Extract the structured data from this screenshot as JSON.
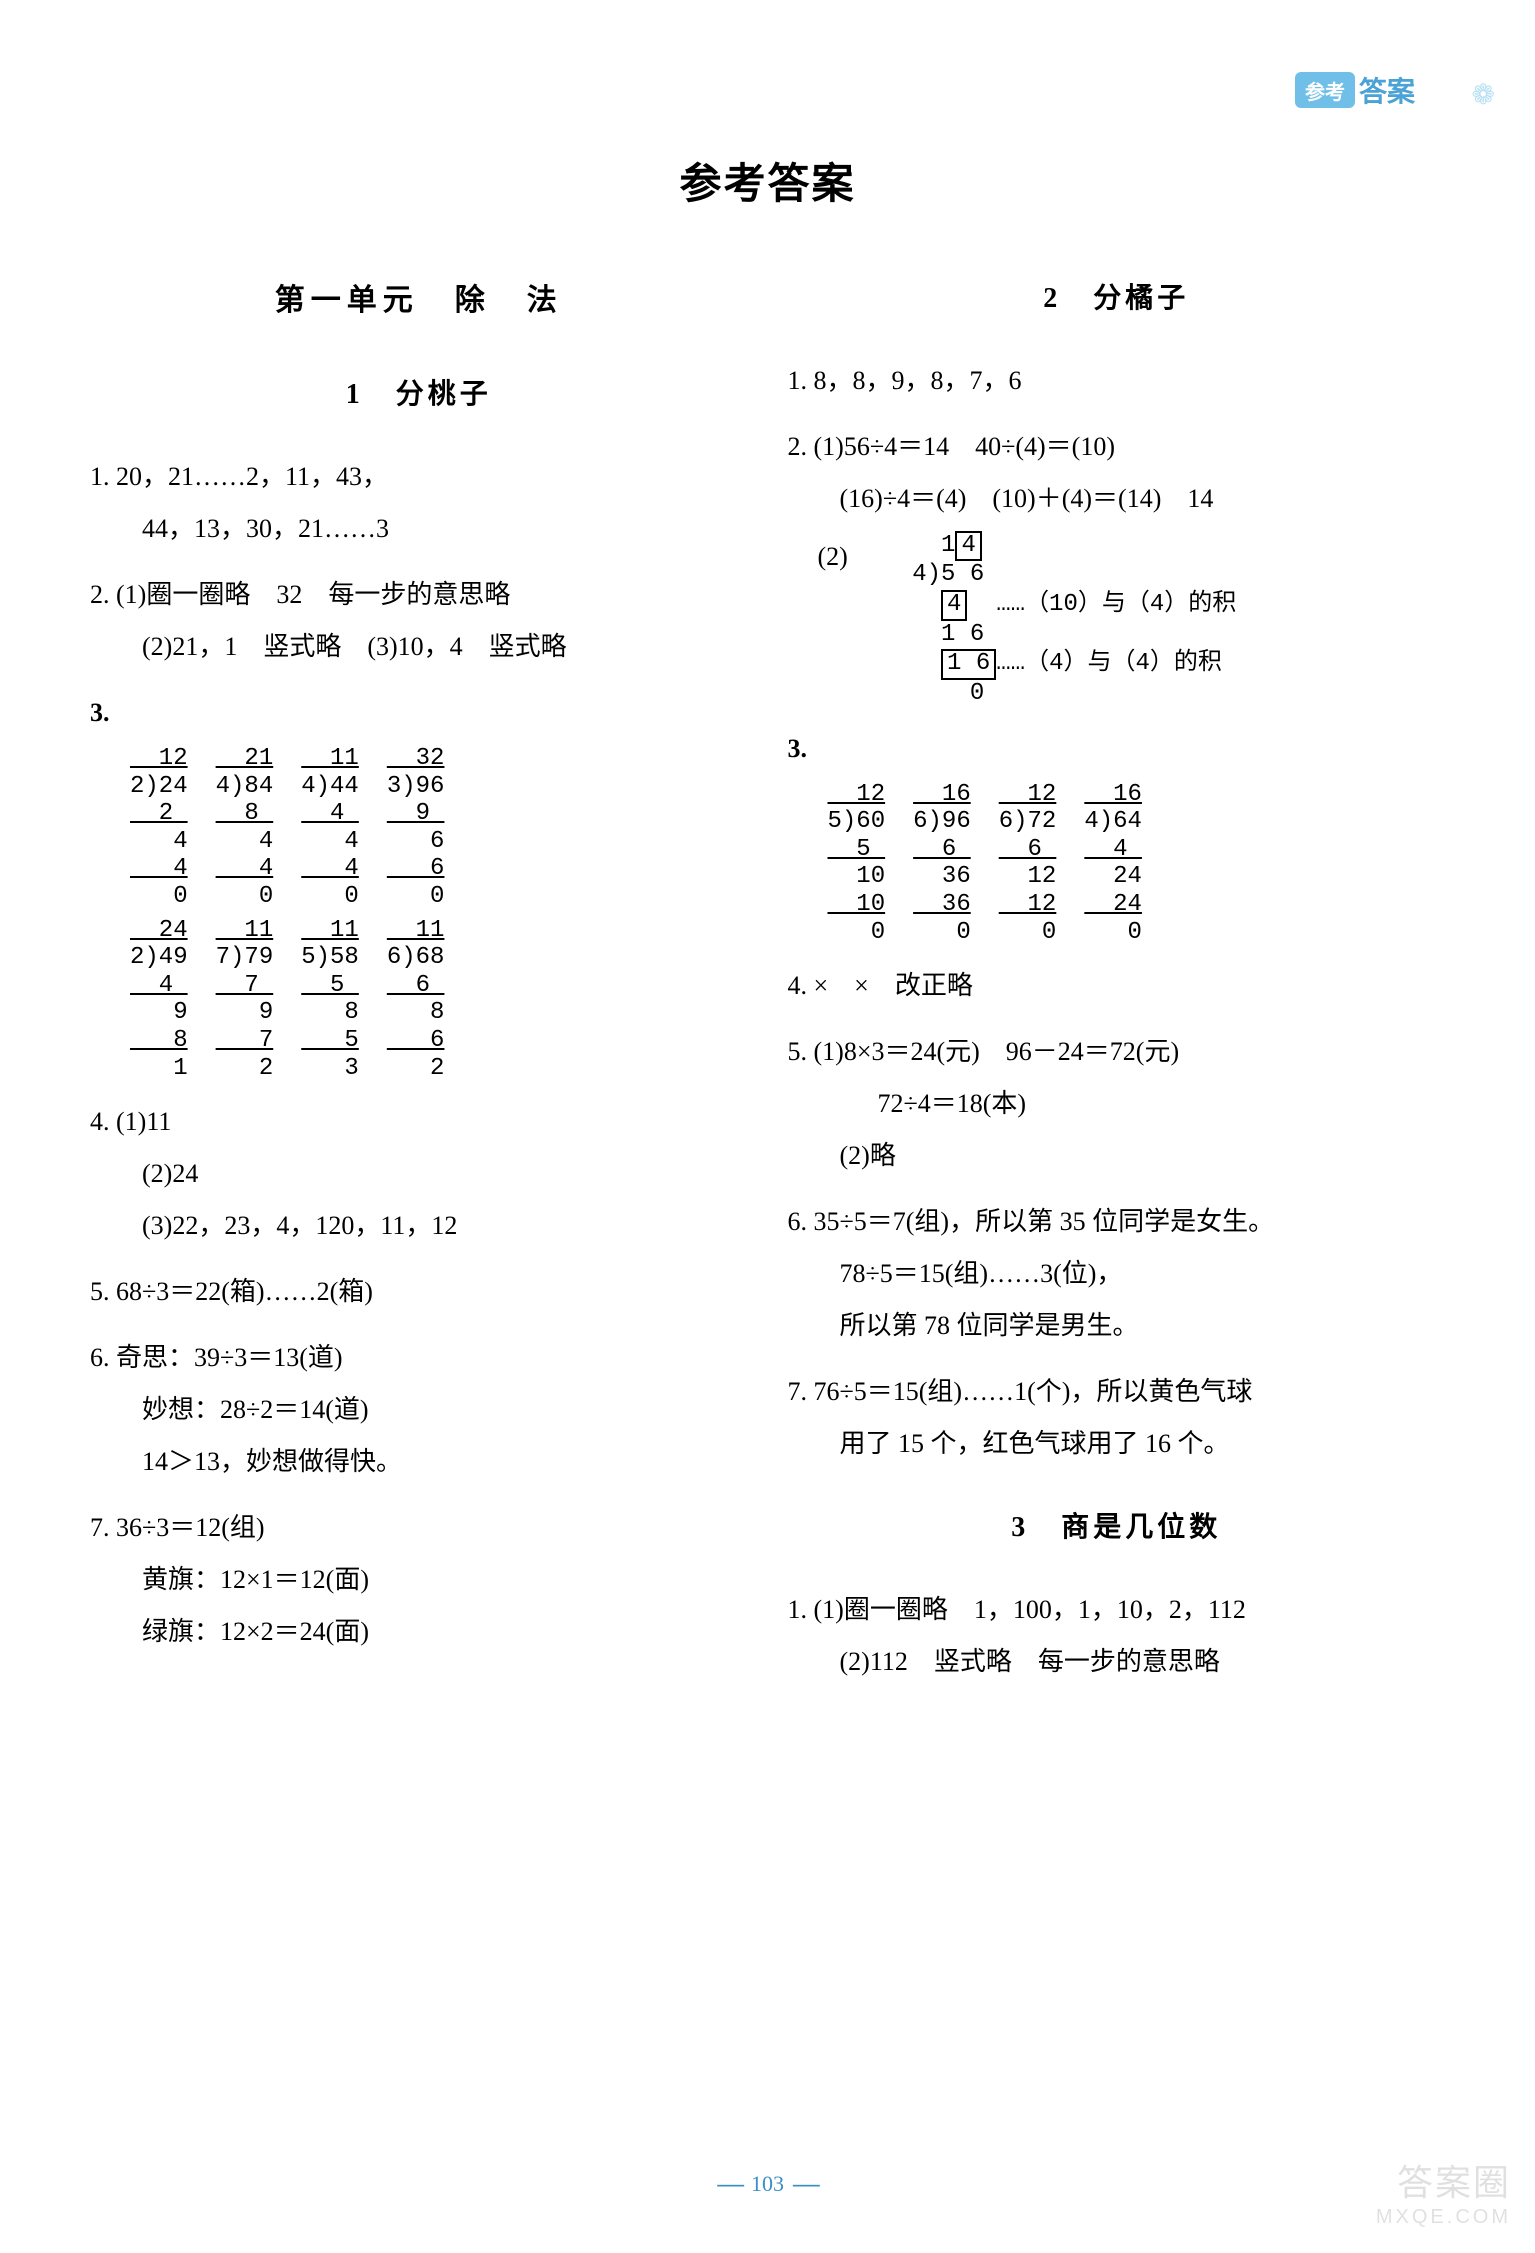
{
  "header": {
    "tag_icon": "参考",
    "tag_text": "答案",
    "sun": "❁"
  },
  "main_title": "参考答案",
  "page_number": "103",
  "watermark": {
    "line1": "答案圈",
    "line2": "MXQE.COM"
  },
  "left": {
    "unit_title": "第一单元　除　法",
    "s1": {
      "title": "1　分桃子",
      "i1a": "1. 20，21……2，11，43，",
      "i1b": "44，13，30，21……3",
      "i2a": "2. (1)圈一圈略　32　每一步的意思略",
      "i2b": "(2)21，1　竖式略　(3)10，4　竖式略",
      "i3n": "3.",
      "ld3": [
        [
          "  12",
          "  21",
          "  11",
          "  32"
        ],
        [
          "2)24",
          "4)84",
          "4)44",
          "3)96"
        ],
        [
          "  2 ",
          "  8 ",
          "  4 ",
          "  9 "
        ],
        [
          "   4",
          "   4",
          "   4",
          "   6"
        ],
        [
          "   4",
          "   4",
          "   4",
          "   6"
        ],
        [
          "   0",
          "   0",
          "   0",
          "   0"
        ]
      ],
      "ld3b": [
        [
          "  24",
          "  11",
          "  11",
          "  11"
        ],
        [
          "2)49",
          "7)79",
          "5)58",
          "6)68"
        ],
        [
          "  4 ",
          "  7 ",
          "  5 ",
          "  6 "
        ],
        [
          "   9",
          "   9",
          "   8",
          "   8"
        ],
        [
          "   8",
          "   7",
          "   5",
          "   6"
        ],
        [
          "   1",
          "   2",
          "   3",
          "   2"
        ]
      ],
      "i4a": "4. (1)11",
      "i4b": "(2)24",
      "i4c": "(3)22，23，4，120，11，12",
      "i5": "5. 68÷3＝22(箱)……2(箱)",
      "i6a": "6. 奇思：39÷3＝13(道)",
      "i6b": "妙想：28÷2＝14(道)",
      "i6c": "14＞13，妙想做得快。",
      "i7a": "7. 36÷3＝12(组)",
      "i7b": "黄旗：12×1＝12(面)",
      "i7c": "绿旗：12×2＝24(面)"
    }
  },
  "right": {
    "s2": {
      "title": "2　分橘子",
      "i1": "1. 8，8，9，8，7，6",
      "i2a": "2. (1)56÷4＝14　40÷(4)＝(10)",
      "i2b": "(16)÷4＝(4)　(10)＋(4)＝(14)　14",
      "i2c": "(2)",
      "ld2": {
        "l1": "   1",
        "l1b": "4",
        "l2": " 4)5 6",
        "l3a": "   ",
        "l3b": "4",
        "l3c": "  ……（10）与（4）的积",
        "l4": "   1 6",
        "l5a": "   ",
        "l5b": "1 6",
        "l5c": "……（4）与（4）的积",
        "l6": "     0"
      },
      "i3n": "3.",
      "ld3": [
        [
          "  12",
          "  16",
          "  12",
          "  16"
        ],
        [
          "5)60",
          "6)96",
          "6)72",
          "4)64"
        ],
        [
          "  5 ",
          "  6 ",
          "  6 ",
          "  4 "
        ],
        [
          "  10",
          "  36",
          "  12",
          "  24"
        ],
        [
          "  10",
          "  36",
          "  12",
          "  24"
        ],
        [
          "   0",
          "   0",
          "   0",
          "   0"
        ]
      ],
      "i4": "4. ×　×　改正略",
      "i5a": "5. (1)8×3＝24(元)　96－24＝72(元)",
      "i5b": "72÷4＝18(本)",
      "i5c": "(2)略",
      "i6a": "6. 35÷5＝7(组)，所以第 35 位同学是女生。",
      "i6b": "78÷5＝15(组)……3(位)，",
      "i6c": "所以第 78 位同学是男生。",
      "i7a": "7. 76÷5＝15(组)……1(个)，所以黄色气球",
      "i7b": "用了 15 个，红色气球用了 16 个。"
    },
    "s3": {
      "title": "3　商是几位数",
      "i1a": "1. (1)圈一圈略　1，100，1，10，2，112",
      "i1b": "(2)112　竖式略　每一步的意思略"
    }
  }
}
